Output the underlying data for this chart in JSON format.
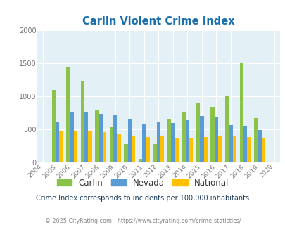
{
  "title": "Carlin Violent Crime Index",
  "years": [
    2004,
    2005,
    2006,
    2007,
    2008,
    2009,
    2010,
    2011,
    2012,
    2013,
    2014,
    2015,
    2016,
    2017,
    2018,
    2019,
    2020
  ],
  "carlin": [
    null,
    1090,
    1450,
    1230,
    800,
    540,
    280,
    50,
    280,
    660,
    750,
    890,
    840,
    1000,
    1500,
    670,
    null
  ],
  "nevada": [
    null,
    610,
    750,
    750,
    730,
    710,
    660,
    570,
    610,
    600,
    640,
    700,
    680,
    560,
    550,
    490,
    null
  ],
  "national": [
    null,
    470,
    480,
    470,
    460,
    430,
    400,
    380,
    390,
    370,
    370,
    380,
    390,
    400,
    380,
    370,
    null
  ],
  "ylim": [
    0,
    2000
  ],
  "yticks": [
    0,
    500,
    1000,
    1500,
    2000
  ],
  "carlin_color": "#8bc34a",
  "nevada_color": "#5b9bd5",
  "national_color": "#ffc000",
  "bg_color": "#e3f0f5",
  "title_color": "#1a6fad",
  "legend_carlin_color": "#4a7c00",
  "legend_nevada_color": "#7b3f9e",
  "legend_national_color": "#7b3f00",
  "subtitle": "Crime Index corresponds to incidents per 100,000 inhabitants",
  "footer": "© 2025 CityRating.com - https://www.cityrating.com/crime-statistics/",
  "subtitle_color": "#1a3a5c",
  "footer_color": "#888888",
  "grid_color": "#ffffff"
}
